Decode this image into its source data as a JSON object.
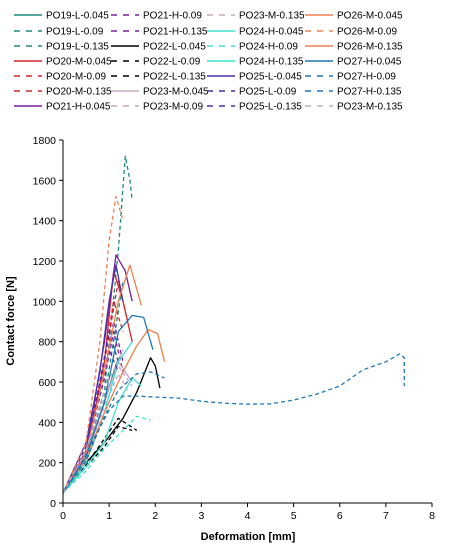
{
  "chart_data": {
    "type": "line",
    "title": "",
    "xlabel": "Deformation [mm]",
    "ylabel": "Contact force [N]",
    "xlim": [
      0,
      8
    ],
    "ylim": [
      0,
      1800
    ],
    "xticks": [
      "0",
      "1",
      "2",
      "3",
      "4",
      "5",
      "6",
      "7",
      "8"
    ],
    "yticks": [
      "0",
      "200",
      "400",
      "600",
      "800",
      "1000",
      "1200",
      "1400",
      "1600",
      "1800"
    ],
    "grid": false,
    "legend_position": "top, 4 columns",
    "series": [
      {
        "name": "PO19-L-0.045",
        "color": "#1a8a7a",
        "dash": "solid",
        "x": [
          0,
          0.5,
          0.9,
          1.2
        ],
        "y": [
          50,
          250,
          500,
          720
        ]
      },
      {
        "name": "PO19-L-0.09",
        "color": "#1a8a7a",
        "dash": "dashed",
        "x": [
          0,
          0.5,
          0.9,
          1.2,
          1.35,
          1.45,
          1.5
        ],
        "y": [
          50,
          230,
          560,
          1250,
          1720,
          1600,
          1500
        ]
      },
      {
        "name": "PO19-L-0.135",
        "color": "#1a8a7a",
        "dash": "dashed",
        "x": [
          0,
          0.5,
          0.9,
          1.2,
          1.3
        ],
        "y": [
          50,
          250,
          520,
          950,
          1100
        ]
      },
      {
        "name": "PO20-M-0.045",
        "color": "#d62728",
        "dash": "solid",
        "x": [
          0,
          0.5,
          0.9,
          1.1,
          1.3,
          1.5
        ],
        "y": [
          50,
          250,
          700,
          1150,
          1000,
          800
        ]
      },
      {
        "name": "PO20-M-0.09",
        "color": "#d62728",
        "dash": "dashed",
        "x": [
          0,
          0.5,
          0.9,
          1.1,
          1.3
        ],
        "y": [
          50,
          260,
          720,
          1000,
          850
        ]
      },
      {
        "name": "PO20-M-0.135",
        "color": "#d62728",
        "dash": "dashed",
        "x": [
          0,
          0.5,
          0.9,
          1.2,
          1.4
        ],
        "y": [
          50,
          250,
          700,
          1100,
          900
        ]
      },
      {
        "name": "PO21-H-0.045",
        "color": "#7b1fa2",
        "dash": "solid",
        "x": [
          0,
          0.5,
          0.9,
          1.15,
          1.35,
          1.5
        ],
        "y": [
          50,
          260,
          800,
          1230,
          1150,
          1000
        ]
      },
      {
        "name": "PO21-H-0.09",
        "color": "#7b1fa2",
        "dash": "dashed",
        "x": [
          0,
          0.5,
          0.9,
          1.1,
          1.3
        ],
        "y": [
          50,
          240,
          650,
          900,
          700
        ]
      },
      {
        "name": "PO21-H-0.135",
        "color": "#7b1fa2",
        "dash": "dashed",
        "x": [
          0,
          0.5,
          0.9,
          1.1,
          1.3
        ],
        "y": [
          50,
          250,
          620,
          850,
          650
        ]
      },
      {
        "name": "PO22-L-0.045",
        "color": "#000000",
        "dash": "solid",
        "x": [
          0,
          0.5,
          0.9,
          1.3,
          1.6,
          1.9,
          2.0,
          2.1
        ],
        "y": [
          50,
          200,
          300,
          420,
          550,
          720,
          680,
          570
        ]
      },
      {
        "name": "PO22-L-0.09",
        "color": "#000000",
        "dash": "dashed",
        "x": [
          0,
          0.5,
          0.9,
          1.2,
          1.5
        ],
        "y": [
          50,
          180,
          280,
          380,
          360
        ]
      },
      {
        "name": "PO22-L-0.135",
        "color": "#000000",
        "dash": "dashed",
        "x": [
          0,
          0.5,
          0.9,
          1.2,
          1.6
        ],
        "y": [
          50,
          190,
          320,
          420,
          360
        ]
      },
      {
        "name": "PO23-M-0.045",
        "color": "#c9a7c0",
        "dash": "solid",
        "x": [
          0,
          0.5,
          0.9,
          1.2,
          1.5
        ],
        "y": [
          50,
          230,
          500,
          700,
          600
        ]
      },
      {
        "name": "PO23-M-0.09",
        "color": "#c9a7c0",
        "dash": "dashed",
        "x": [
          0,
          0.5,
          0.9,
          1.2,
          1.4
        ],
        "y": [
          50,
          230,
          480,
          640,
          560
        ]
      },
      {
        "name": "PO23-M-0.135",
        "color": "#c9a7c0",
        "dash": "dashed",
        "x": [
          0,
          0.5,
          0.9,
          1.2,
          1.5
        ],
        "y": [
          50,
          240,
          520,
          680,
          580
        ]
      },
      {
        "name": "PO24-H-0.045",
        "color": "#40e0d0",
        "dash": "solid",
        "x": [
          0,
          0.5,
          0.9,
          1.2,
          1.5
        ],
        "y": [
          50,
          200,
          450,
          700,
          800
        ]
      },
      {
        "name": "PO24-H-0.09",
        "color": "#40e0d0",
        "dash": "dashed",
        "x": [
          0,
          0.5,
          0.9,
          1.3,
          1.6,
          1.9
        ],
        "y": [
          50,
          160,
          270,
          360,
          430,
          410
        ]
      },
      {
        "name": "PO24-H-0.135",
        "color": "#40e0d0",
        "dash": "solid",
        "x": [
          0,
          0.5,
          0.9,
          1.2,
          1.5,
          1.7
        ],
        "y": [
          50,
          180,
          300,
          500,
          620,
          580
        ]
      },
      {
        "name": "PO25-L-0.045",
        "color": "#4b2fa8",
        "dash": "solid",
        "x": [
          0,
          0.5,
          0.8,
          1.0,
          1.15,
          1.3
        ],
        "y": [
          50,
          300,
          650,
          1000,
          1180,
          1000
        ]
      },
      {
        "name": "PO25-L-0.09",
        "color": "#4b2fa8",
        "dash": "dashed",
        "x": [
          0,
          0.5,
          0.8,
          1.0,
          1.2
        ],
        "y": [
          50,
          300,
          600,
          850,
          700
        ]
      },
      {
        "name": "PO25-L-0.135",
        "color": "#4b2fa8",
        "dash": "dashed",
        "x": [
          0,
          0.5,
          0.8,
          1.0,
          1.2
        ],
        "y": [
          50,
          280,
          560,
          760,
          650
        ]
      },
      {
        "name": "PO26-M-0.045",
        "color": "#f08050",
        "dash": "solid",
        "x": [
          0,
          0.5,
          0.9,
          1.3,
          1.6,
          1.85,
          2.05,
          2.2
        ],
        "y": [
          50,
          220,
          450,
          650,
          780,
          860,
          840,
          700
        ]
      },
      {
        "name": "PO26-M-0.09",
        "color": "#f08050",
        "dash": "dashed",
        "x": [
          0,
          0.5,
          0.8,
          1.0,
          1.15,
          1.3
        ],
        "y": [
          50,
          300,
          800,
          1300,
          1520,
          1400
        ]
      },
      {
        "name": "PO26-M-0.135",
        "color": "#f08050",
        "dash": "solid",
        "x": [
          0,
          0.5,
          0.9,
          1.2,
          1.45,
          1.7
        ],
        "y": [
          50,
          250,
          650,
          1000,
          1180,
          980
        ]
      },
      {
        "name": "PO27-H-0.045",
        "color": "#1f77b4",
        "dash": "solid",
        "x": [
          0,
          0.5,
          0.9,
          1.2,
          1.5,
          1.75,
          1.95
        ],
        "y": [
          50,
          230,
          500,
          850,
          930,
          920,
          760
        ]
      },
      {
        "name": "PO27-H-0.09",
        "color": "#1f77b4",
        "dash": "dashed",
        "x": [
          0,
          0.4,
          0.7,
          1.0,
          1.3,
          1.6,
          2.0,
          2.5,
          3.0,
          3.5,
          4.0,
          4.5,
          5.0,
          5.5,
          6.0,
          6.5,
          7.0,
          7.3,
          7.4,
          7.4
        ],
        "y": [
          50,
          200,
          330,
          460,
          530,
          530,
          525,
          520,
          505,
          495,
          490,
          492,
          510,
          540,
          580,
          660,
          700,
          740,
          720,
          580
        ]
      },
      {
        "name": "PO27-H-0.135",
        "color": "#1f77b4",
        "dash": "dashed",
        "x": [
          0,
          0.5,
          0.9,
          1.2,
          1.6,
          1.9,
          2.2
        ],
        "y": [
          50,
          210,
          430,
          560,
          640,
          650,
          620
        ]
      },
      {
        "name": "PO23-M-0.135",
        "color": "#c9a7c0",
        "dash": "dashed",
        "x": [
          0,
          0.5,
          0.9,
          1.3
        ],
        "y": [
          50,
          260,
          560,
          760
        ]
      }
    ]
  }
}
